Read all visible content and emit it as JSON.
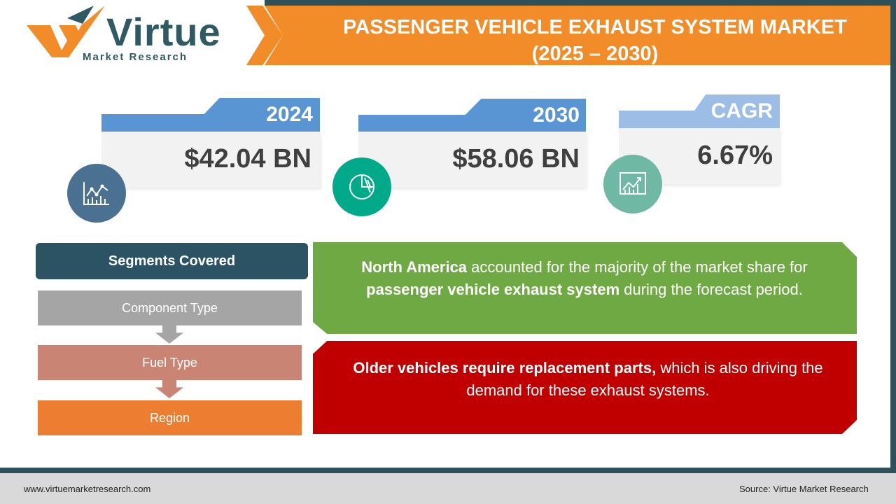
{
  "brand": {
    "name": "Virtue",
    "tagline": "Market Research"
  },
  "header": {
    "title_line1": "PASSENGER VEHICLE EXHAUST SYSTEM MARKET",
    "title_line2": "(2025 – 2030)"
  },
  "stats": [
    {
      "label": "2024",
      "value": "$42.04 BN",
      "icon": "line-chart-icon",
      "color": "#5a95d3",
      "circle_color": "#4a7192"
    },
    {
      "label": "2030",
      "value": "$58.06 BN",
      "icon": "pie-chart-icon",
      "color": "#5a95d3",
      "circle_color": "#00a98a"
    },
    {
      "label": "CAGR",
      "value": "6.67%",
      "icon": "growth-chart-icon",
      "color": "#9cbde6",
      "circle_color": "#6fb8a3"
    }
  ],
  "segments": {
    "heading": "Segments Covered",
    "items": [
      {
        "label": "Component Type",
        "color": "#a5a5a5"
      },
      {
        "label": "Fuel Type",
        "color": "#c98474"
      },
      {
        "label": "Region",
        "color": "#ed7d31"
      }
    ]
  },
  "insights": {
    "green": {
      "bold1": "North America",
      "text1": " accounted for the majority of the market share for ",
      "bold2": "passenger vehicle exhaust system",
      "text2": " during the forecast period."
    },
    "red": {
      "bold1": "Older vehicles require replacement parts,",
      "text1": " which is also driving the demand for these exhaust systems."
    }
  },
  "footer": {
    "website": "www.virtuemarketresearch.com",
    "source": "Source: Virtue Market Research"
  }
}
